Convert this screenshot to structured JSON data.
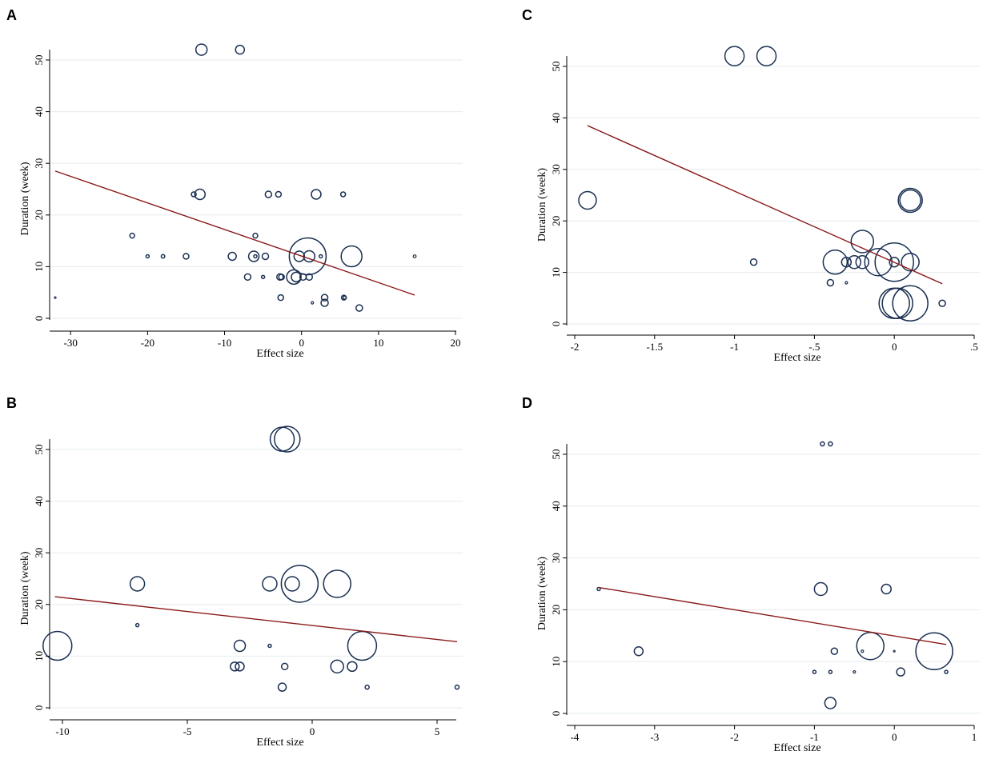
{
  "chart_data": [
    {
      "panel": "A",
      "type": "scatter",
      "xlabel": "Effect size",
      "ylabel": "Duration (week)",
      "xlim": [
        -32,
        20
      ],
      "ylim": [
        0,
        52
      ],
      "xticks": [
        -30,
        -20,
        -10,
        0,
        10,
        20
      ],
      "xtick_labels": [
        "-30",
        "-20",
        "-10",
        "0",
        "10",
        "20"
      ],
      "yticks": [
        0,
        10,
        20,
        30,
        40,
        50
      ],
      "ytick_labels": [
        "0",
        "10",
        "20",
        "30",
        "40",
        "50"
      ],
      "points": [
        {
          "x": -13,
          "y": 52,
          "w": 7
        },
        {
          "x": -8,
          "y": 52,
          "w": 5.5
        },
        {
          "x": -14,
          "y": 24,
          "w": 3
        },
        {
          "x": -13.2,
          "y": 24,
          "w": 6.5
        },
        {
          "x": -4.3,
          "y": 24,
          "w": 4
        },
        {
          "x": -3,
          "y": 24,
          "w": 3.5
        },
        {
          "x": 1.9,
          "y": 24,
          "w": 6
        },
        {
          "x": 5.4,
          "y": 24,
          "w": 3
        },
        {
          "x": -22,
          "y": 16,
          "w": 3
        },
        {
          "x": -6,
          "y": 16,
          "w": 3
        },
        {
          "x": -20,
          "y": 12,
          "w": 2
        },
        {
          "x": -18,
          "y": 12,
          "w": 2.2
        },
        {
          "x": -15,
          "y": 12,
          "w": 3.5
        },
        {
          "x": -9,
          "y": 12,
          "w": 5
        },
        {
          "x": -6.2,
          "y": 12,
          "w": 6.5
        },
        {
          "x": -6,
          "y": 12,
          "w": 2
        },
        {
          "x": -4.7,
          "y": 12,
          "w": 4
        },
        {
          "x": -0.3,
          "y": 12,
          "w": 6.5
        },
        {
          "x": 0.8,
          "y": 12,
          "w": 23
        },
        {
          "x": 1,
          "y": 12,
          "w": 7
        },
        {
          "x": 2.5,
          "y": 12,
          "w": 2
        },
        {
          "x": 6.5,
          "y": 12,
          "w": 13
        },
        {
          "x": 14.7,
          "y": 12,
          "w": 1.8
        },
        {
          "x": -7,
          "y": 8,
          "w": 4
        },
        {
          "x": -5,
          "y": 8,
          "w": 2
        },
        {
          "x": -2.8,
          "y": 8,
          "w": 4
        },
        {
          "x": -2.6,
          "y": 8,
          "w": 3.5
        },
        {
          "x": -1,
          "y": 8,
          "w": 9
        },
        {
          "x": -0.7,
          "y": 8,
          "w": 6
        },
        {
          "x": 0.2,
          "y": 8,
          "w": 4
        },
        {
          "x": 1,
          "y": 8,
          "w": 4
        },
        {
          "x": -32,
          "y": 4,
          "w": 1
        },
        {
          "x": -2.7,
          "y": 4,
          "w": 3.5
        },
        {
          "x": 3,
          "y": 4,
          "w": 4
        },
        {
          "x": 5.5,
          "y": 4,
          "w": 3
        },
        {
          "x": 5.6,
          "y": 4,
          "w": 2
        },
        {
          "x": 1.4,
          "y": 3,
          "w": 1.5
        },
        {
          "x": 3,
          "y": 3,
          "w": 4.5
        },
        {
          "x": 7.5,
          "y": 2,
          "w": 4
        }
      ],
      "fit_line": {
        "x": [
          -32,
          14.7
        ],
        "y": [
          28.5,
          4.5
        ]
      }
    },
    {
      "panel": "B",
      "type": "scatter",
      "xlabel": "Effect size",
      "ylabel": "Duration (week)",
      "xlim": [
        -10.5,
        5.8
      ],
      "ylim": [
        0,
        52
      ],
      "xticks": [
        -10,
        -5,
        0,
        5
      ],
      "xtick_labels": [
        "-10",
        "-5",
        "0",
        "5"
      ],
      "yticks": [
        0,
        10,
        20,
        30,
        40,
        50
      ],
      "ytick_labels": [
        "0",
        "10",
        "20",
        "30",
        "40",
        "50"
      ],
      "points": [
        {
          "x": -1.2,
          "y": 52,
          "w": 15
        },
        {
          "x": -1,
          "y": 52,
          "w": 16
        },
        {
          "x": -7,
          "y": 24,
          "w": 9
        },
        {
          "x": -1.7,
          "y": 24,
          "w": 9
        },
        {
          "x": -0.8,
          "y": 24,
          "w": 9
        },
        {
          "x": -0.5,
          "y": 24,
          "w": 23
        },
        {
          "x": 1,
          "y": 24,
          "w": 17
        },
        {
          "x": -7,
          "y": 16,
          "w": 2
        },
        {
          "x": -10.2,
          "y": 12,
          "w": 18
        },
        {
          "x": -2.9,
          "y": 12,
          "w": 7
        },
        {
          "x": -1.7,
          "y": 12,
          "w": 2
        },
        {
          "x": 2,
          "y": 12,
          "w": 18
        },
        {
          "x": -3.1,
          "y": 8,
          "w": 5.5
        },
        {
          "x": -2.9,
          "y": 8,
          "w": 5.5
        },
        {
          "x": -1.1,
          "y": 8,
          "w": 4
        },
        {
          "x": 1,
          "y": 8,
          "w": 8
        },
        {
          "x": 1.6,
          "y": 8,
          "w": 6
        },
        {
          "x": -1.2,
          "y": 4,
          "w": 5
        },
        {
          "x": 2.2,
          "y": 4,
          "w": 2.5
        },
        {
          "x": 5.8,
          "y": 4,
          "w": 2.5
        }
      ],
      "fit_line": {
        "x": [
          -10.3,
          5.8
        ],
        "y": [
          21.5,
          12.8
        ]
      }
    },
    {
      "panel": "C",
      "type": "scatter",
      "xlabel": "Effect size",
      "ylabel": "Duration (week)",
      "xlim": [
        -2,
        0.5
      ],
      "ylim": [
        0,
        52
      ],
      "xticks": [
        -2,
        -1.5,
        -1,
        -0.5,
        0,
        0.5
      ],
      "xtick_labels": [
        "-2",
        "-1.5",
        "-1",
        "-.5",
        "0",
        ".5"
      ],
      "yticks": [
        0,
        10,
        20,
        30,
        40,
        50
      ],
      "ytick_labels": [
        "0",
        "10",
        "20",
        "30",
        "40",
        "50"
      ],
      "points": [
        {
          "x": -1,
          "y": 52,
          "w": 12
        },
        {
          "x": -0.8,
          "y": 52,
          "w": 12
        },
        {
          "x": -1.92,
          "y": 24,
          "w": 11
        },
        {
          "x": 0.1,
          "y": 24,
          "w": 15
        },
        {
          "x": 0.1,
          "y": 24,
          "w": 13
        },
        {
          "x": -0.2,
          "y": 16,
          "w": 14
        },
        {
          "x": -0.88,
          "y": 12,
          "w": 4
        },
        {
          "x": -0.37,
          "y": 12,
          "w": 15
        },
        {
          "x": -0.3,
          "y": 12,
          "w": 6
        },
        {
          "x": -0.25,
          "y": 12,
          "w": 8
        },
        {
          "x": -0.2,
          "y": 12,
          "w": 8
        },
        {
          "x": -0.1,
          "y": 12,
          "w": 17
        },
        {
          "x": 0,
          "y": 12,
          "w": 24
        },
        {
          "x": 0,
          "y": 12,
          "w": 6
        },
        {
          "x": 0.1,
          "y": 12,
          "w": 11
        },
        {
          "x": -0.4,
          "y": 8,
          "w": 4
        },
        {
          "x": -0.3,
          "y": 8,
          "w": 1.5
        },
        {
          "x": 0,
          "y": 4,
          "w": 19
        },
        {
          "x": 0.02,
          "y": 4,
          "w": 19
        },
        {
          "x": 0.1,
          "y": 4,
          "w": 22
        },
        {
          "x": 0.3,
          "y": 4,
          "w": 4
        }
      ],
      "fit_line": {
        "x": [
          -1.92,
          0.3
        ],
        "y": [
          38.5,
          7.8
        ]
      }
    },
    {
      "panel": "D",
      "type": "scatter",
      "xlabel": "Effect size",
      "ylabel": "Duration (week)",
      "xlim": [
        -4,
        1
      ],
      "ylim": [
        0,
        52
      ],
      "xticks": [
        -4,
        -3,
        -2,
        -1,
        0,
        1
      ],
      "xtick_labels": [
        "-4",
        "-3",
        "-2",
        "-1",
        "0",
        "1"
      ],
      "yticks": [
        0,
        10,
        20,
        30,
        40,
        50
      ],
      "ytick_labels": [
        "0",
        "10",
        "20",
        "30",
        "40",
        "50"
      ],
      "points": [
        {
          "x": -0.9,
          "y": 52,
          "w": 2.5
        },
        {
          "x": -0.8,
          "y": 52,
          "w": 2.5
        },
        {
          "x": -3.7,
          "y": 24,
          "w": 2
        },
        {
          "x": -0.92,
          "y": 24,
          "w": 8
        },
        {
          "x": -0.1,
          "y": 24,
          "w": 6
        },
        {
          "x": -3.2,
          "y": 12,
          "w": 5.5
        },
        {
          "x": -0.75,
          "y": 12,
          "w": 4
        },
        {
          "x": -0.4,
          "y": 12,
          "w": 1.5
        },
        {
          "x": -0.3,
          "y": 13,
          "w": 17
        },
        {
          "x": 0,
          "y": 12,
          "w": 1
        },
        {
          "x": 0.5,
          "y": 12,
          "w": 23
        },
        {
          "x": -1,
          "y": 8,
          "w": 2
        },
        {
          "x": -0.8,
          "y": 8,
          "w": 2
        },
        {
          "x": -0.5,
          "y": 8,
          "w": 1.5
        },
        {
          "x": 0.08,
          "y": 8,
          "w": 5
        },
        {
          "x": 0.65,
          "y": 8,
          "w": 2
        },
        {
          "x": -0.8,
          "y": 2,
          "w": 7
        }
      ],
      "fit_line": {
        "x": [
          -3.7,
          0.65
        ],
        "y": [
          24.3,
          13.3
        ]
      }
    }
  ],
  "style": {
    "marker_color": "#1a2f52",
    "line_color": "#8b1a1a",
    "grid_color": "#e6ebf0",
    "axis_color": "#000000"
  }
}
